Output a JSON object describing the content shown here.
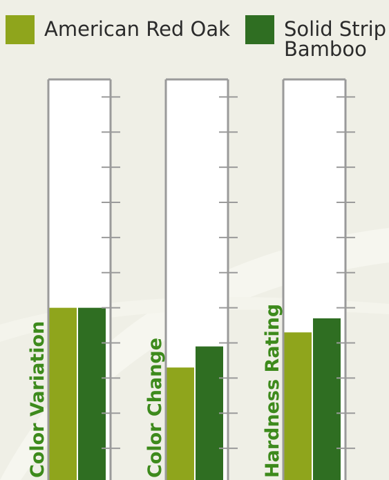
{
  "chart_data": {
    "type": "bar",
    "categories": [
      "Color Variation",
      "Color Change",
      "Hardness Rating"
    ],
    "series": [
      {
        "name": "American Red Oak",
        "color": "#8fa51c",
        "values": [
          5,
          3.3,
          4.3
        ]
      },
      {
        "name": "Solid Strip Bamboo",
        "color": "#2f6e22",
        "values": [
          5,
          3.9,
          4.7
        ]
      }
    ],
    "legend_lines": [
      [
        "American Red Oak"
      ],
      [
        "Solid Strip",
        "Bamboo"
      ]
    ],
    "ylim": [
      0,
      11.5
    ],
    "tick_count": 11,
    "title": "",
    "xlabel": "",
    "ylabel": "",
    "grid": false,
    "legend": "top",
    "label_color": "#3d8a1c",
    "frame_color": "#9a9a9a"
  }
}
